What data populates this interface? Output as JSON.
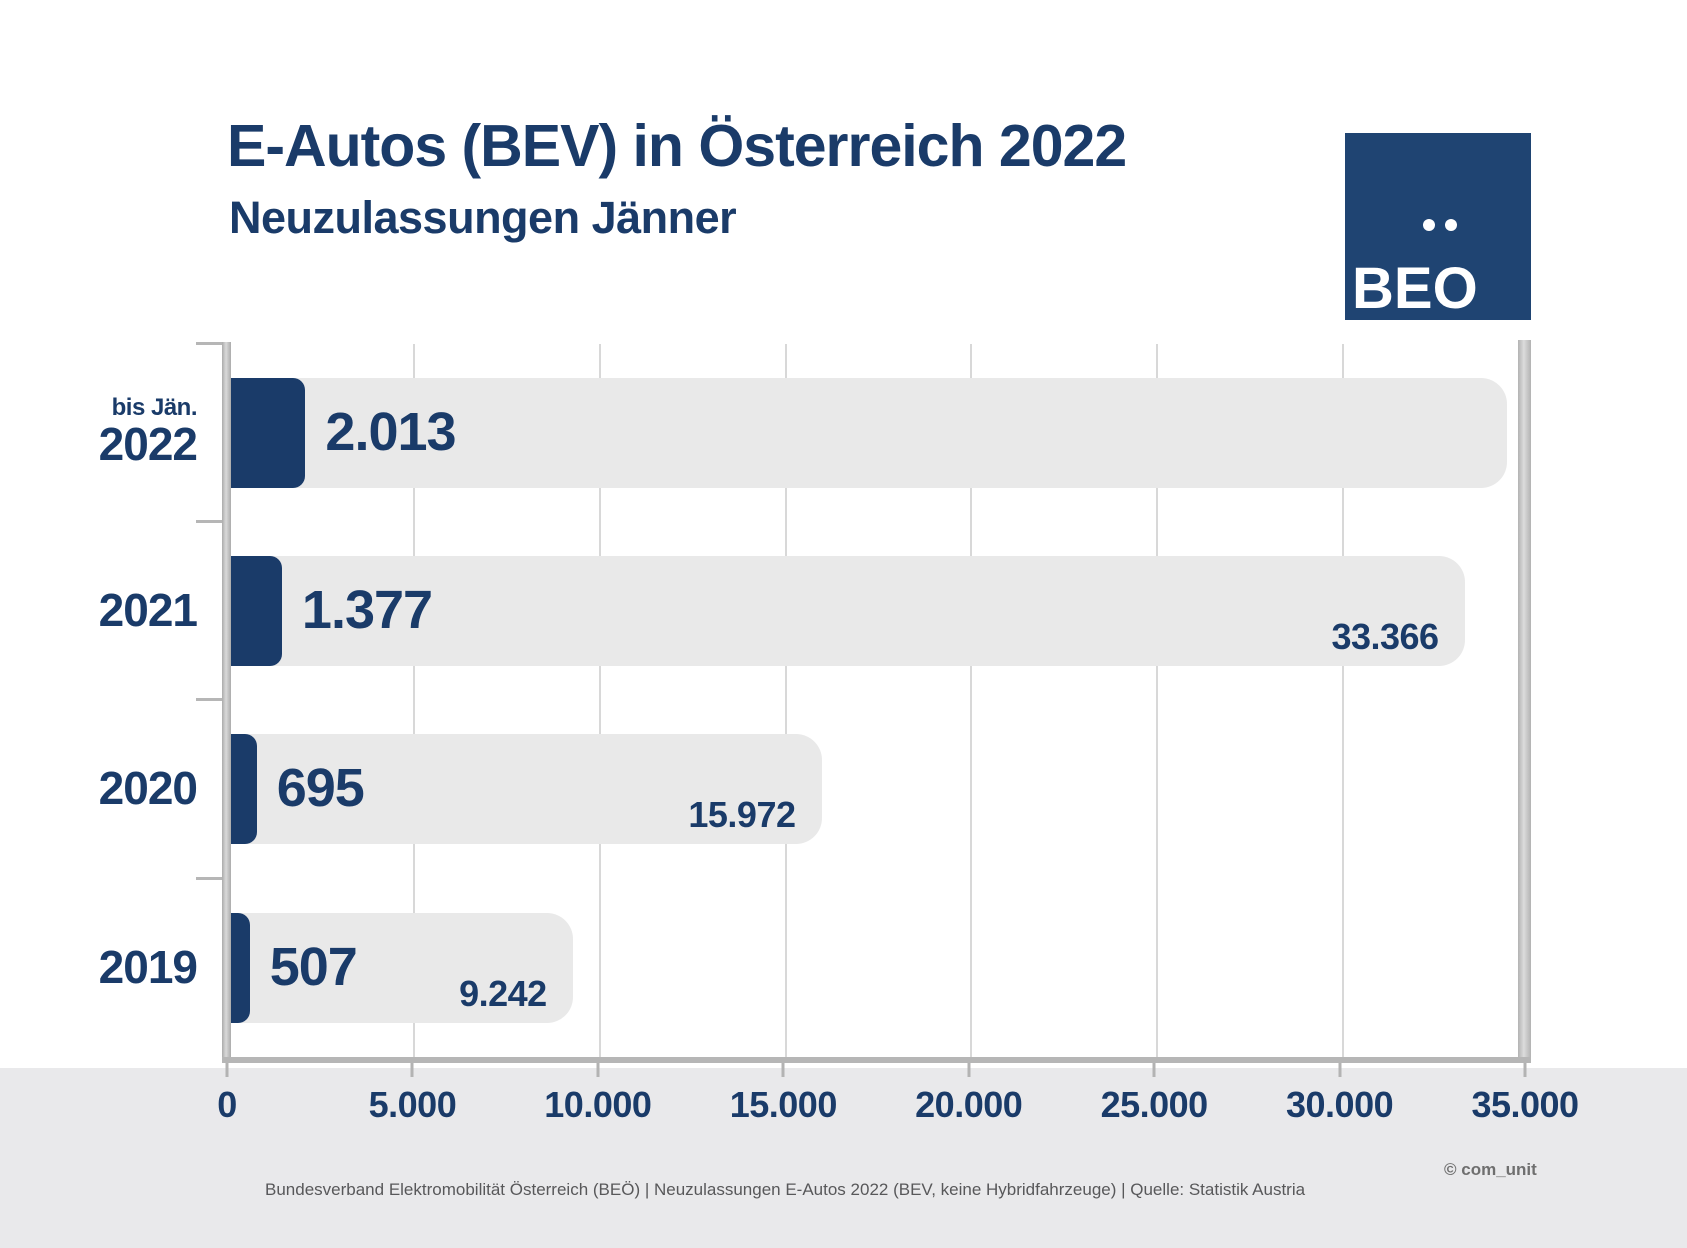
{
  "header": {
    "title": "E-Autos (BEV) in Österreich 2022",
    "subtitle": "Neuzulassungen Jänner"
  },
  "logo": {
    "text": "BEO"
  },
  "chart_data": {
    "type": "bar",
    "orientation": "horizontal",
    "title": "E-Autos (BEV) in Österreich 2022",
    "subtitle": "Neuzulassungen Jänner",
    "rows": [
      {
        "category_prefix": "bis Jän.",
        "category": "2022",
        "value": 2013,
        "value_label": "2.013",
        "total": null,
        "total_label": ""
      },
      {
        "category_prefix": "",
        "category": "2021",
        "value": 1377,
        "value_label": "1.377",
        "total": 33366,
        "total_label": "33.366"
      },
      {
        "category_prefix": "",
        "category": "2020",
        "value": 695,
        "value_label": "695",
        "total": 15972,
        "total_label": "15.972"
      },
      {
        "category_prefix": "",
        "category": "2019",
        "value": 507,
        "value_label": "507",
        "total": 9242,
        "total_label": "9.242"
      }
    ],
    "axis": {
      "xmin": 0,
      "xmax": 35000,
      "tick_interval": 5000,
      "tick_labels": [
        "0",
        "5.000",
        "10.000",
        "15.000",
        "20.000",
        "25.000",
        "30.000",
        "35.000"
      ]
    },
    "layout": {
      "grid": "vertical",
      "legend": "none",
      "background_bar_extent_2022": 34500,
      "bar_color": "#1a3b69",
      "background_bar_color": "#e9e9e9",
      "accent_navy": "#1a3b69"
    }
  },
  "footer": {
    "source": "Bundesverband Elektromobilität Österreich (BEÖ) | Neuzulassungen E-Autos 2022 (BEV, keine Hybridfahrzeuge) | Quelle: Statistik Austria",
    "copyright": "© com_unit"
  }
}
